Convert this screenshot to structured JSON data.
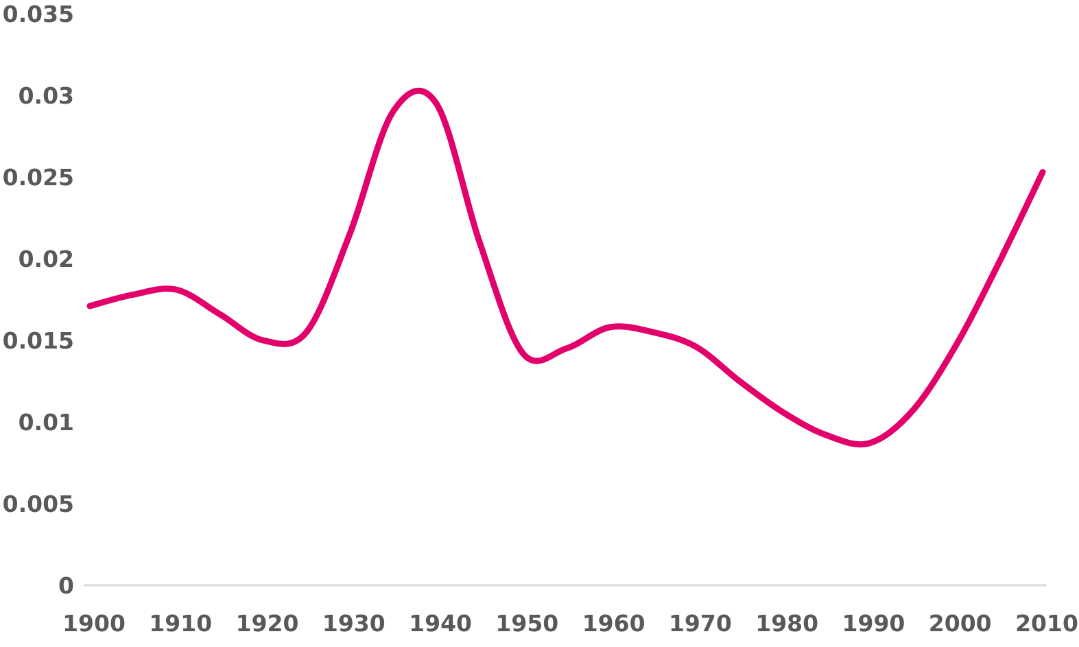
{
  "chart_data": {
    "type": "line",
    "title": "",
    "xlabel": "",
    "ylabel": "",
    "x": [
      1900,
      1905,
      1910,
      1915,
      1920,
      1925,
      1930,
      1935,
      1940,
      1945,
      1950,
      1955,
      1960,
      1965,
      1970,
      1975,
      1980,
      1985,
      1990,
      1995,
      2000,
      2005,
      2010
    ],
    "series": [
      {
        "color": "#e2006a",
        "values": [
          0.0171,
          0.0178,
          0.0181,
          0.0166,
          0.015,
          0.0155,
          0.0215,
          0.029,
          0.0295,
          0.021,
          0.0142,
          0.0145,
          0.0158,
          0.0155,
          0.0146,
          0.0125,
          0.0106,
          0.0092,
          0.0087,
          0.0107,
          0.0147,
          0.0198,
          0.0253
        ]
      }
    ],
    "xlim": [
      1900,
      2010
    ],
    "ylim": [
      0,
      0.035
    ],
    "x_ticks": [
      "1900",
      "1910",
      "1920",
      "1930",
      "1940",
      "1950",
      "1960",
      "1970",
      "1980",
      "1990",
      "2000",
      "2010"
    ],
    "y_ticks": [
      "0",
      "0.005",
      "0.01",
      "0.015",
      "0.02",
      "0.025",
      "0.03",
      "0.035"
    ],
    "grid": false,
    "legend": "none"
  }
}
